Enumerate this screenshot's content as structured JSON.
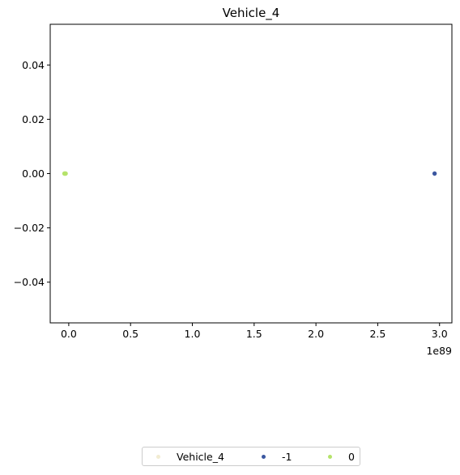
{
  "chart_data": {
    "type": "scatter",
    "title": "Vehicle_4",
    "xlabel": "",
    "ylabel": "",
    "x_offset_label": "1e89",
    "xlim": [
      -0.15,
      3.1
    ],
    "ylim": [
      -0.055,
      0.055
    ],
    "x_ticks": [
      0.0,
      0.5,
      1.0,
      1.5,
      2.0,
      2.5,
      3.0
    ],
    "x_tick_labels": [
      "0.0",
      "0.5",
      "1.0",
      "1.5",
      "2.0",
      "2.5",
      "3.0"
    ],
    "y_ticks": [
      0.04,
      0.02,
      0.0,
      -0.02,
      -0.04
    ],
    "y_tick_labels": [
      "0.04",
      "0.02",
      "0.00",
      "−0.02",
      "−0.04"
    ],
    "grid": false,
    "legend_position": "bottom-center",
    "series": [
      {
        "name": "Vehicle_4",
        "color": "#f2ecd2",
        "points": []
      },
      {
        "name": "-1",
        "color": "#3b57a0",
        "points": [
          [
            2.96,
            0.0
          ]
        ]
      },
      {
        "name": "0",
        "color": "#b5e36a",
        "points": [
          [
            -0.03,
            0.0
          ],
          [
            -0.035,
            0.0
          ],
          [
            -0.025,
            0.0
          ]
        ]
      }
    ]
  }
}
